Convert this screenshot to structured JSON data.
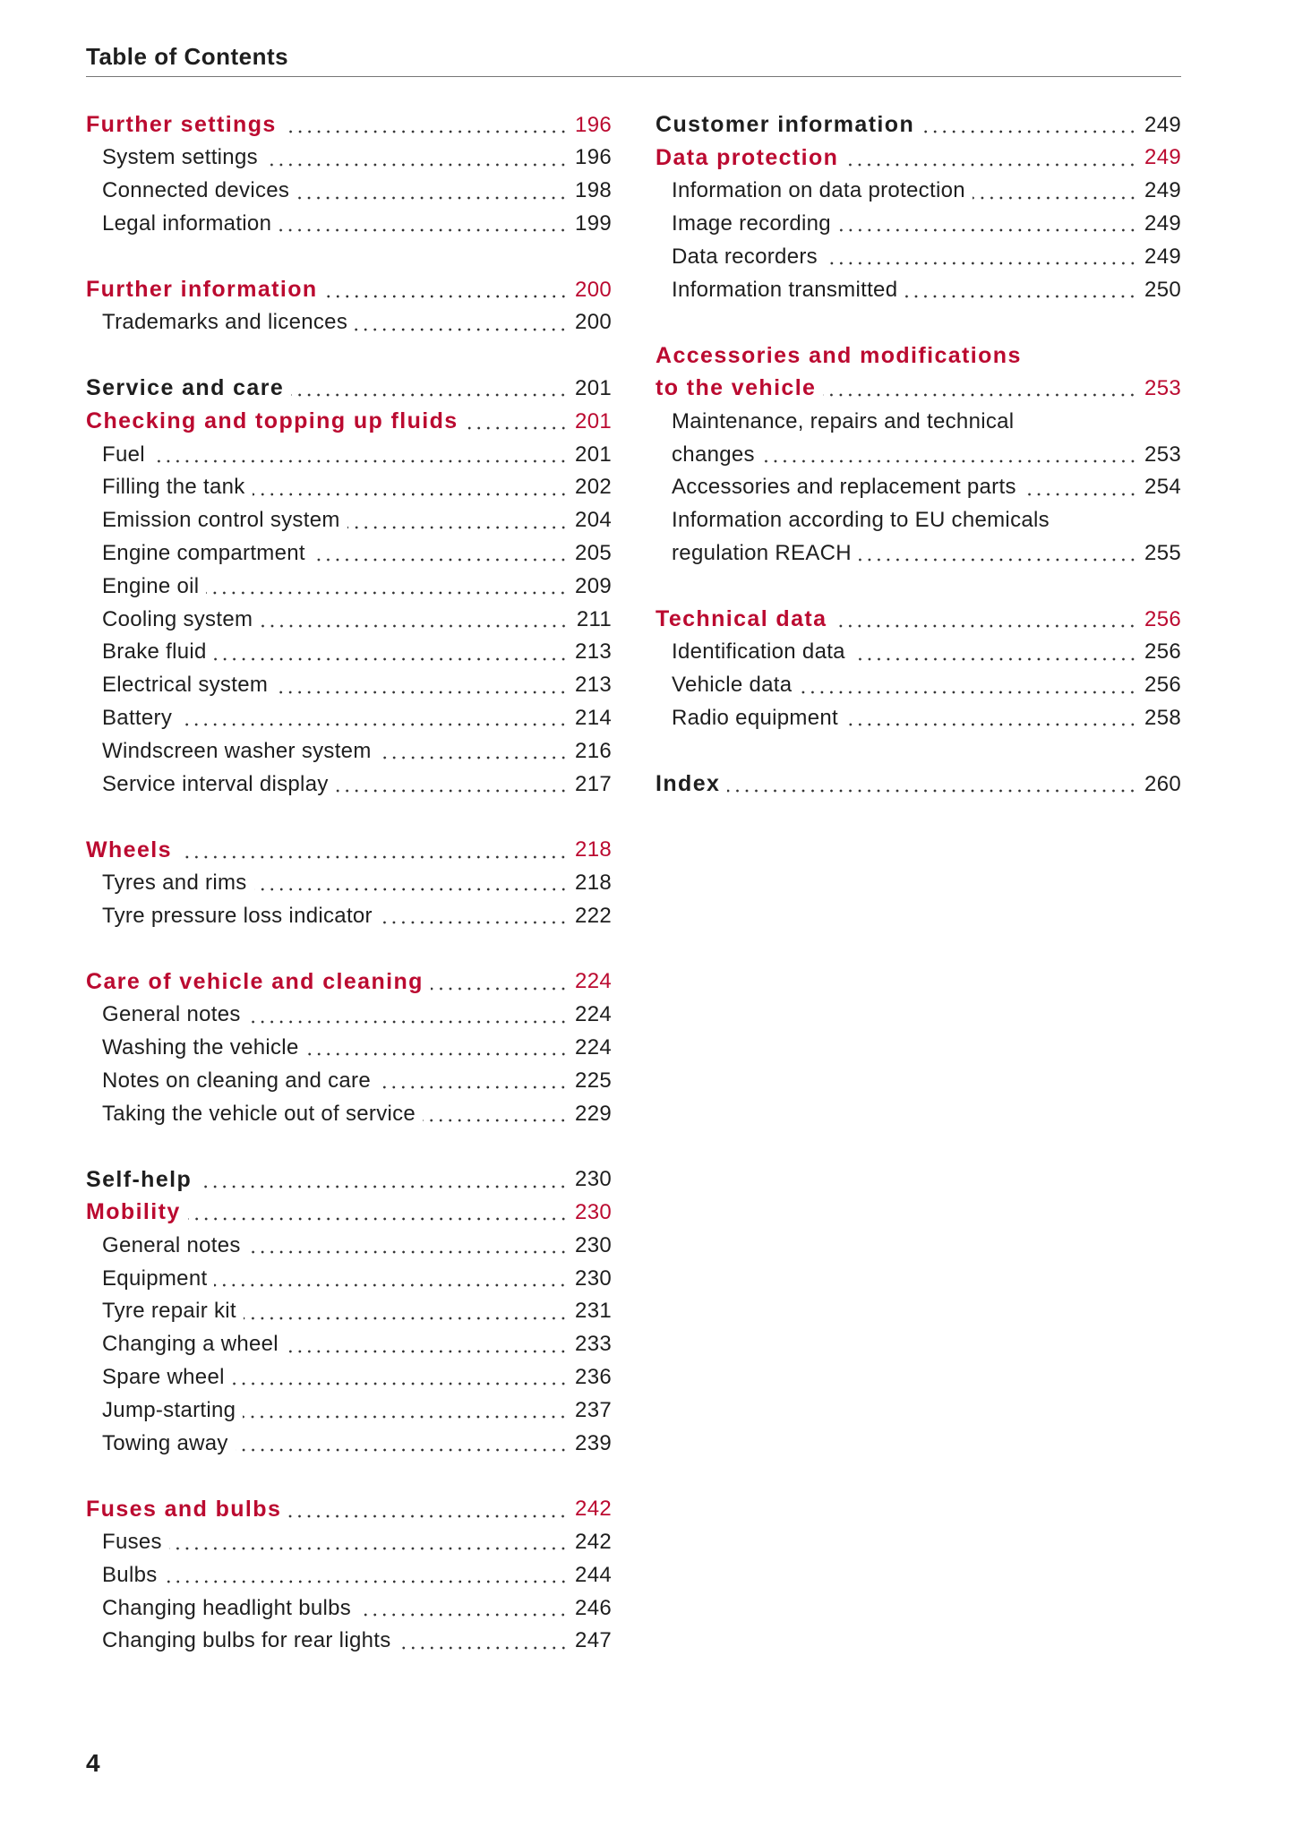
{
  "header": {
    "title": "Table of Contents"
  },
  "columns": [
    [
      [
        {
          "lines": [
            "Further settings"
          ],
          "page": 196,
          "style": "section"
        },
        {
          "lines": [
            "System settings"
          ],
          "page": 196,
          "style": "item"
        },
        {
          "lines": [
            "Connected devices"
          ],
          "page": 198,
          "style": "item"
        },
        {
          "lines": [
            "Legal information"
          ],
          "page": 199,
          "style": "item"
        }
      ],
      [
        {
          "lines": [
            "Further information"
          ],
          "page": 200,
          "style": "section"
        },
        {
          "lines": [
            "Trademarks and licences"
          ],
          "page": 200,
          "style": "item"
        }
      ],
      [
        {
          "lines": [
            "Service and care"
          ],
          "page": 201,
          "style": "chapter"
        },
        {
          "lines": [
            "Checking and topping up fluids"
          ],
          "page": 201,
          "style": "section"
        },
        {
          "lines": [
            "Fuel"
          ],
          "page": 201,
          "style": "item"
        },
        {
          "lines": [
            "Filling the tank"
          ],
          "page": 202,
          "style": "item"
        },
        {
          "lines": [
            "Emission control system"
          ],
          "page": 204,
          "style": "item"
        },
        {
          "lines": [
            "Engine compartment"
          ],
          "page": 205,
          "style": "item"
        },
        {
          "lines": [
            "Engine oil"
          ],
          "page": 209,
          "style": "item"
        },
        {
          "lines": [
            "Cooling system"
          ],
          "page": 211,
          "style": "item"
        },
        {
          "lines": [
            "Brake fluid"
          ],
          "page": 213,
          "style": "item"
        },
        {
          "lines": [
            "Electrical system"
          ],
          "page": 213,
          "style": "item"
        },
        {
          "lines": [
            "Battery"
          ],
          "page": 214,
          "style": "item"
        },
        {
          "lines": [
            "Windscreen washer system"
          ],
          "page": 216,
          "style": "item"
        },
        {
          "lines": [
            "Service interval display"
          ],
          "page": 217,
          "style": "item"
        }
      ],
      [
        {
          "lines": [
            "Wheels"
          ],
          "page": 218,
          "style": "section"
        },
        {
          "lines": [
            "Tyres and rims"
          ],
          "page": 218,
          "style": "item"
        },
        {
          "lines": [
            "Tyre pressure loss indicator"
          ],
          "page": 222,
          "style": "item"
        }
      ],
      [
        {
          "lines": [
            "Care of vehicle and cleaning"
          ],
          "page": 224,
          "style": "section"
        },
        {
          "lines": [
            "General notes"
          ],
          "page": 224,
          "style": "item"
        },
        {
          "lines": [
            "Washing the vehicle"
          ],
          "page": 224,
          "style": "item"
        },
        {
          "lines": [
            "Notes on cleaning and care"
          ],
          "page": 225,
          "style": "item"
        },
        {
          "lines": [
            "Taking the vehicle out of service"
          ],
          "page": 229,
          "style": "item"
        }
      ],
      [
        {
          "lines": [
            "Self-help"
          ],
          "page": 230,
          "style": "chapter"
        },
        {
          "lines": [
            "Mobility"
          ],
          "page": 230,
          "style": "section"
        },
        {
          "lines": [
            "General notes"
          ],
          "page": 230,
          "style": "item"
        },
        {
          "lines": [
            "Equipment"
          ],
          "page": 230,
          "style": "item"
        },
        {
          "lines": [
            "Tyre repair kit"
          ],
          "page": 231,
          "style": "item"
        },
        {
          "lines": [
            "Changing a wheel"
          ],
          "page": 233,
          "style": "item"
        },
        {
          "lines": [
            "Spare wheel"
          ],
          "page": 236,
          "style": "item"
        },
        {
          "lines": [
            "Jump-starting"
          ],
          "page": 237,
          "style": "item"
        },
        {
          "lines": [
            "Towing away"
          ],
          "page": 239,
          "style": "item"
        }
      ],
      [
        {
          "lines": [
            "Fuses and bulbs"
          ],
          "page": 242,
          "style": "section"
        },
        {
          "lines": [
            "Fuses"
          ],
          "page": 242,
          "style": "item"
        },
        {
          "lines": [
            "Bulbs"
          ],
          "page": 244,
          "style": "item"
        },
        {
          "lines": [
            "Changing headlight bulbs"
          ],
          "page": 246,
          "style": "item"
        },
        {
          "lines": [
            "Changing bulbs for rear lights"
          ],
          "page": 247,
          "style": "item"
        }
      ]
    ],
    [
      [
        {
          "lines": [
            "Customer information"
          ],
          "page": 249,
          "style": "chapter"
        },
        {
          "lines": [
            "Data protection"
          ],
          "page": 249,
          "style": "section"
        },
        {
          "lines": [
            "Information on data protection"
          ],
          "page": 249,
          "style": "item"
        },
        {
          "lines": [
            "Image recording"
          ],
          "page": 249,
          "style": "item"
        },
        {
          "lines": [
            "Data recorders"
          ],
          "page": 249,
          "style": "item"
        },
        {
          "lines": [
            "Information transmitted"
          ],
          "page": 250,
          "style": "item"
        }
      ],
      [
        {
          "lines": [
            "Accessories and modifications",
            "to the vehicle"
          ],
          "page": 253,
          "style": "section"
        },
        {
          "lines": [
            "Maintenance, repairs and technical",
            "changes"
          ],
          "page": 253,
          "style": "item"
        },
        {
          "lines": [
            "Accessories and replacement parts"
          ],
          "page": 254,
          "style": "item"
        },
        {
          "lines": [
            "Information according to EU chemicals",
            "regulation REACH"
          ],
          "page": 255,
          "style": "item"
        }
      ],
      [
        {
          "lines": [
            "Technical data"
          ],
          "page": 256,
          "style": "section"
        },
        {
          "lines": [
            "Identification data"
          ],
          "page": 256,
          "style": "item"
        },
        {
          "lines": [
            "Vehicle data"
          ],
          "page": 256,
          "style": "item"
        },
        {
          "lines": [
            "Radio equipment"
          ],
          "page": 258,
          "style": "item"
        }
      ],
      [
        {
          "lines": [
            "Index"
          ],
          "page": 260,
          "style": "chapter"
        }
      ]
    ]
  ],
  "footer": {
    "page_number": 4
  }
}
